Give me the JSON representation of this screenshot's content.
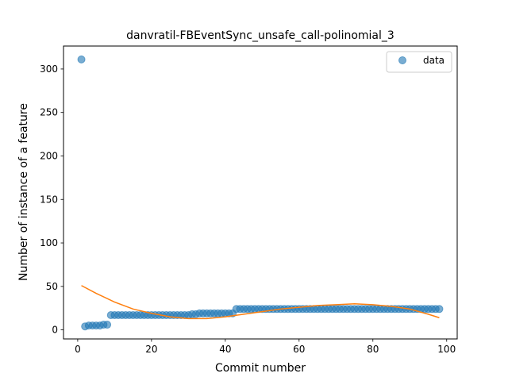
{
  "chart_data": {
    "type": "scatter",
    "title": "danvratil-FBEventSync_unsafe_call-polinomial_3",
    "xlabel": "Commit number",
    "ylabel": "Number of instance of a feature",
    "xlim": [
      -3.85,
      102.85
    ],
    "ylim": [
      -10.4,
      326.4
    ],
    "xticks": [
      0,
      20,
      40,
      60,
      80,
      100
    ],
    "yticks": [
      0,
      50,
      100,
      150,
      200,
      250,
      300
    ],
    "grid": false,
    "legend": {
      "placement": "upper right",
      "entries": [
        "data"
      ]
    },
    "colors": {
      "data": "#1f77b4",
      "fit": "#ff7f0e"
    },
    "series": [
      {
        "name": "data",
        "kind": "scatter",
        "x": [
          1,
          2,
          3,
          4,
          5,
          6,
          7,
          8,
          9,
          10,
          11,
          12,
          13,
          14,
          15,
          16,
          17,
          18,
          19,
          20,
          21,
          22,
          23,
          24,
          25,
          26,
          27,
          28,
          29,
          30,
          31,
          32,
          33,
          34,
          35,
          36,
          37,
          38,
          39,
          40,
          41,
          42,
          43,
          44,
          45,
          46,
          47,
          48,
          49,
          50,
          51,
          52,
          53,
          54,
          55,
          56,
          57,
          58,
          59,
          60,
          61,
          62,
          63,
          64,
          65,
          66,
          67,
          68,
          69,
          70,
          71,
          72,
          73,
          74,
          75,
          76,
          77,
          78,
          79,
          80,
          81,
          82,
          83,
          84,
          85,
          86,
          87,
          88,
          89,
          90,
          91,
          92,
          93,
          94,
          95,
          96,
          97,
          98
        ],
        "y": [
          311,
          4,
          5,
          5,
          5,
          5,
          6,
          6,
          17,
          17,
          17,
          17,
          17,
          17,
          17,
          17,
          17,
          17,
          17,
          17,
          17,
          17,
          17,
          17,
          17,
          17,
          17,
          17,
          17,
          17,
          18,
          18,
          19,
          19,
          19,
          19,
          19,
          19,
          19,
          19,
          19,
          19,
          24,
          24,
          24,
          24,
          24,
          24,
          24,
          24,
          24,
          24,
          24,
          24,
          24,
          24,
          24,
          24,
          24,
          24,
          24,
          24,
          24,
          24,
          24,
          24,
          24,
          24,
          24,
          24,
          24,
          24,
          24,
          24,
          24,
          24,
          24,
          24,
          24,
          24,
          24,
          24,
          24,
          24,
          24,
          24,
          24,
          24,
          24,
          24,
          24,
          24,
          24,
          24,
          24,
          24,
          24,
          24
        ]
      },
      {
        "name": "",
        "kind": "line",
        "polynomial_degree": 3,
        "x": [
          1,
          5,
          10,
          15,
          20,
          25,
          30,
          35,
          40,
          45,
          50,
          55,
          60,
          65,
          70,
          75,
          80,
          85,
          90,
          95,
          98
        ],
        "y": [
          51,
          42,
          32,
          24,
          19,
          15,
          13,
          13,
          15,
          18,
          21,
          24,
          26,
          28,
          29,
          30,
          29,
          27,
          24,
          18,
          14
        ]
      }
    ]
  }
}
